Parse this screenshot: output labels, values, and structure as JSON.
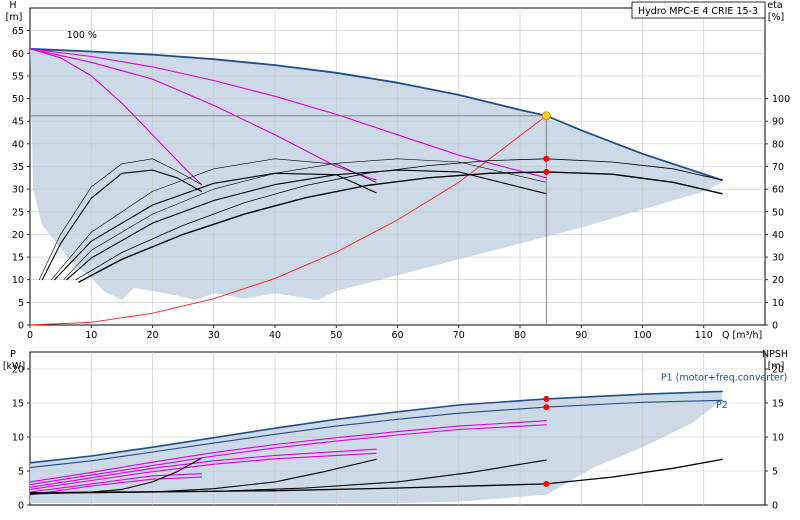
{
  "chart_data": [
    {
      "type": "line",
      "title": "Hydro MPC-E 4 CRIE 15-3",
      "ylabel": "H",
      "yunit": "[m]",
      "xlabel": "Q",
      "xunit": "[m³/h]",
      "xlim": [
        0,
        120
      ],
      "ylim": [
        0,
        70
      ],
      "xticks": [
        0,
        10,
        20,
        30,
        40,
        50,
        60,
        70,
        80,
        90,
        100,
        110
      ],
      "yticks": [
        0,
        5,
        10,
        15,
        20,
        25,
        30,
        35,
        40,
        45,
        50,
        55,
        60,
        65
      ],
      "y2label": "eta",
      "y2unit": "[%]",
      "y2lim": [
        0,
        140
      ],
      "y2ticks": [
        0,
        10,
        20,
        30,
        40,
        50,
        60,
        70,
        80,
        90,
        100
      ],
      "grid": true,
      "annotations": [
        {
          "text": "100 %",
          "x": 6,
          "y": 62
        }
      ],
      "duty_point": {
        "x": 84.3,
        "y": 46.2
      },
      "marked_points": [
        {
          "x": 84.3,
          "y": 36.7
        },
        {
          "x": 84.3,
          "y": 33.8
        }
      ],
      "series": [
        {
          "role": "envelope-100",
          "color": "#1f4e8c",
          "width": 1.8,
          "x": [
            0,
            10,
            20,
            30,
            40,
            50,
            60,
            70,
            80,
            84.3,
            90,
            100,
            113
          ],
          "y": [
            61,
            60.4,
            59.7,
            58.7,
            57.4,
            55.7,
            53.5,
            50.8,
            47.5,
            46.2,
            43,
            37.8,
            32
          ]
        },
        {
          "role": "pump1-reduced-1",
          "color": "#e000e0",
          "width": 1.1,
          "x": [
            0,
            5,
            10,
            15,
            20,
            25,
            28
          ],
          "y": [
            61,
            59,
            55,
            49,
            42,
            35,
            31
          ]
        },
        {
          "role": "pump1-reduced-2",
          "color": "#e000e0",
          "width": 1.1,
          "x": [
            0,
            10,
            20,
            30,
            40,
            50,
            56.5
          ],
          "y": [
            61,
            58,
            54.3,
            48.5,
            42,
            35,
            32
          ]
        },
        {
          "role": "pump1-reduced-3",
          "color": "#e000e0",
          "width": 1.1,
          "x": [
            0,
            10,
            20,
            30,
            40,
            50,
            60,
            70,
            84.3
          ],
          "y": [
            61,
            59.3,
            57,
            54,
            50.5,
            46.5,
            42,
            37.5,
            32.5
          ]
        },
        {
          "role": "system-curve",
          "color": "#ff2020",
          "width": 0.9,
          "x": [
            0,
            10,
            20,
            30,
            40,
            50,
            60,
            70,
            84.3
          ],
          "y": [
            0,
            0.6,
            2.6,
            5.8,
            10.3,
            16.1,
            23.2,
            31.5,
            46.2
          ]
        },
        {
          "role": "eta-1",
          "color": "#000000",
          "width": 1.1,
          "x": [
            2,
            5,
            10,
            15,
            20,
            24,
            28
          ],
          "y": [
            10,
            18,
            28,
            33.5,
            34.2,
            32.5,
            29.5
          ]
        },
        {
          "role": "eta-1-thin",
          "color": "#000000",
          "width": 0.6,
          "x": [
            1.5,
            5,
            10,
            15,
            20,
            24,
            28
          ],
          "y": [
            10,
            20,
            30.5,
            35.6,
            36.7,
            34,
            31
          ]
        },
        {
          "role": "eta-2",
          "color": "#000000",
          "width": 1.1,
          "x": [
            4,
            10,
            20,
            30,
            40,
            50,
            56.5
          ],
          "y": [
            10,
            18.5,
            26.5,
            31.3,
            33.5,
            33.2,
            29.2
          ]
        },
        {
          "role": "eta-2-thin",
          "color": "#000000",
          "width": 0.6,
          "x": [
            3.5,
            10,
            20,
            30,
            40,
            50,
            56.5
          ],
          "y": [
            10,
            20.5,
            29.5,
            34.5,
            36.7,
            35.5,
            31.5
          ]
        },
        {
          "role": "eta-3",
          "color": "#000000",
          "width": 1.1,
          "x": [
            6,
            10,
            20,
            30,
            40,
            50,
            60,
            70,
            84.3
          ],
          "y": [
            10,
            14.8,
            22.5,
            27.5,
            31,
            33.2,
            34.2,
            33.8,
            29
          ]
        },
        {
          "role": "eta-3-thin",
          "color": "#000000",
          "width": 0.6,
          "x": [
            5.5,
            10,
            20,
            30,
            40,
            50,
            60,
            70,
            84.3
          ],
          "y": [
            10,
            16.5,
            24.5,
            30,
            33.5,
            35.7,
            36.7,
            36,
            31.5
          ]
        },
        {
          "role": "eta-4",
          "color": "#000000",
          "width": 1.4,
          "x": [
            8,
            15,
            25,
            35,
            45,
            55,
            65,
            75,
            84.3,
            95,
            105,
            113
          ],
          "y": [
            9.5,
            14.5,
            20,
            24.5,
            28.1,
            30.8,
            32.5,
            33.5,
            33.8,
            33.3,
            31.5,
            29
          ]
        },
        {
          "role": "eta-4-thin",
          "color": "#000000",
          "width": 0.8,
          "x": [
            7.5,
            15,
            25,
            35,
            45,
            55,
            65,
            75,
            84.3,
            95,
            105,
            113
          ],
          "y": [
            10,
            16,
            22,
            27,
            30.8,
            33.5,
            35.2,
            36.3,
            36.7,
            36,
            34.5,
            32
          ]
        }
      ],
      "shaded_region": {
        "color": "#ccd9e6",
        "x": [
          0,
          10,
          20,
          30,
          40,
          50,
          60,
          70,
          80,
          90,
          100,
          113,
          113,
          110,
          100,
          90,
          80,
          70,
          60,
          50,
          47,
          40,
          35,
          30,
          27,
          24,
          20,
          17,
          15,
          12,
          10,
          7,
          5,
          2,
          0.5
        ],
        "y": [
          61,
          60.4,
          59.7,
          58.7,
          57.4,
          55.7,
          53.5,
          50.8,
          47.5,
          43,
          37.8,
          32,
          31.5,
          29.5,
          25.5,
          21.5,
          18,
          14.5,
          11,
          7.5,
          5.5,
          7,
          5.8,
          7,
          5.5,
          6.5,
          7.5,
          8.2,
          5.5,
          7.5,
          10.5,
          13.5,
          17,
          22,
          30
        ]
      }
    },
    {
      "type": "line",
      "ylabel": "P",
      "yunit": "[kW]",
      "xlim": [
        0,
        120
      ],
      "ylim": [
        0,
        22.5
      ],
      "yticks": [
        0,
        5,
        10,
        15,
        20
      ],
      "y2label": "NPSH",
      "y2unit": "[m]",
      "y2lim": [
        0,
        22.5
      ],
      "y2ticks": [
        0,
        5,
        10,
        15,
        20
      ],
      "grid": true,
      "labels": [
        {
          "text": "P1 (motor+freq.converter)",
          "x": 103,
          "y": 18.3
        },
        {
          "text": "P2",
          "x": 112,
          "y": 14.3
        }
      ],
      "marked_points": [
        {
          "x": 84.3,
          "y": 15.6
        },
        {
          "x": 84.3,
          "y": 14.4
        },
        {
          "x": 84.3,
          "y": 3.1
        }
      ],
      "series": [
        {
          "role": "P1",
          "color": "#1f4e8c",
          "width": 1.6,
          "x": [
            0,
            10,
            20,
            30,
            40,
            50,
            60,
            70,
            84.3,
            100,
            113
          ],
          "y": [
            6.2,
            7.2,
            8.5,
            9.9,
            11.3,
            12.6,
            13.7,
            14.7,
            15.6,
            16.3,
            16.7
          ]
        },
        {
          "role": "P2",
          "color": "#1f4e8c",
          "width": 1.1,
          "x": [
            0,
            10,
            20,
            30,
            40,
            50,
            60,
            70,
            84.3,
            100,
            113
          ],
          "y": [
            5.5,
            6.5,
            7.8,
            9.1,
            10.4,
            11.6,
            12.6,
            13.5,
            14.4,
            15.1,
            15.4
          ]
        },
        {
          "role": "P-reduced-1",
          "color": "#e000e0",
          "width": 1.1,
          "x": [
            0,
            10,
            20,
            28
          ],
          "y": [
            1.9,
            3.1,
            4.3,
            4.6
          ]
        },
        {
          "role": "P-reduced-1b",
          "color": "#e000e0",
          "width": 1.1,
          "x": [
            0,
            10,
            20,
            28
          ],
          "y": [
            1.5,
            2.8,
            3.8,
            4.1
          ]
        },
        {
          "role": "P-reduced-2",
          "color": "#e000e0",
          "width": 1.1,
          "x": [
            0,
            10,
            20,
            30,
            40,
            56.5
          ],
          "y": [
            2.6,
            4.0,
            5.4,
            6.5,
            7.3,
            8.2
          ]
        },
        {
          "role": "P-reduced-2b",
          "color": "#e000e0",
          "width": 1.1,
          "x": [
            0,
            10,
            20,
            30,
            40,
            56.5
          ],
          "y": [
            2.3,
            3.6,
            4.9,
            6.0,
            6.8,
            7.6
          ]
        },
        {
          "role": "P-reduced-3",
          "color": "#e000e0",
          "width": 1.1,
          "x": [
            0,
            10,
            20,
            30,
            40,
            50,
            60,
            70,
            84.3
          ],
          "y": [
            3.4,
            4.8,
            6.3,
            7.7,
            8.9,
            9.9,
            10.8,
            11.6,
            12.4
          ]
        },
        {
          "role": "P-reduced-3b",
          "color": "#e000e0",
          "width": 1.1,
          "x": [
            0,
            10,
            20,
            30,
            40,
            50,
            60,
            70,
            84.3
          ],
          "y": [
            3.0,
            4.4,
            5.8,
            7.2,
            8.4,
            9.4,
            10.3,
            11.1,
            11.8
          ]
        },
        {
          "role": "NPSH-1",
          "color": "#000000",
          "width": 1.1,
          "x": [
            0,
            10,
            15,
            20,
            24,
            28
          ],
          "y": [
            1.6,
            1.9,
            2.3,
            3.4,
            4.9,
            6.9
          ]
        },
        {
          "role": "NPSH-2",
          "color": "#000000",
          "width": 1.1,
          "x": [
            0,
            20,
            30,
            40,
            48,
            56.5
          ],
          "y": [
            1.7,
            1.9,
            2.4,
            3.4,
            4.9,
            6.7
          ]
        },
        {
          "role": "NPSH-3",
          "color": "#000000",
          "width": 1.1,
          "x": [
            0,
            30,
            45,
            60,
            72,
            84.3
          ],
          "y": [
            1.8,
            2.0,
            2.5,
            3.4,
            4.8,
            6.6
          ]
        },
        {
          "role": "NPSH-4",
          "color": "#000000",
          "width": 1.3,
          "x": [
            0,
            40,
            60,
            84.3,
            95,
            105,
            113
          ],
          "y": [
            1.8,
            2.1,
            2.5,
            3.1,
            4.1,
            5.4,
            6.7
          ]
        }
      ],
      "shaded_region": {
        "color": "#ccd9e6",
        "x": [
          0,
          10,
          20,
          30,
          40,
          50,
          60,
          70,
          84.3,
          100,
          113,
          113,
          108,
          100,
          92,
          84.3,
          70,
          60,
          50,
          40,
          30,
          20,
          10,
          0
        ],
        "y": [
          6.2,
          7.2,
          8.5,
          9.9,
          11.3,
          12.6,
          13.7,
          14.7,
          15.6,
          16.3,
          16.7,
          15.4,
          12,
          8.5,
          5.5,
          1.5,
          0.5,
          0.3,
          0.3,
          0.3,
          0.3,
          0.3,
          0.3,
          0.3
        ]
      }
    }
  ]
}
